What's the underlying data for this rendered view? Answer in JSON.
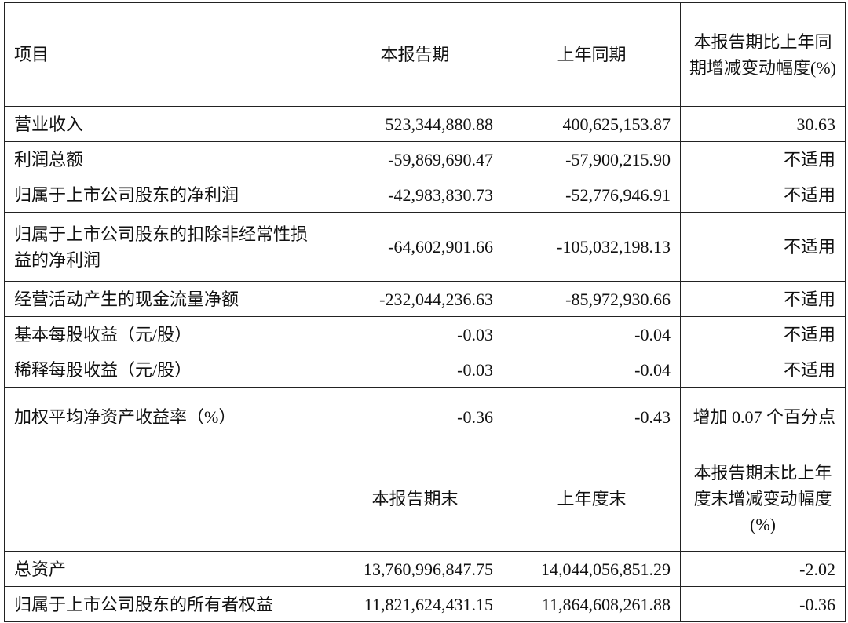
{
  "header": {
    "item": "项目",
    "current": "本报告期",
    "prior": "上年同期",
    "change": "本报告期比上年同期增减变动幅度(%)"
  },
  "rows": [
    {
      "label": "营业收入",
      "current": "523,344,880.88",
      "prior": "400,625,153.87",
      "change": "30.63"
    },
    {
      "label": "利润总额",
      "current": "-59,869,690.47",
      "prior": "-57,900,215.90",
      "change": "不适用"
    },
    {
      "label": "归属于上市公司股东的净利润",
      "current": "-42,983,830.73",
      "prior": "-52,776,946.91",
      "change": "不适用"
    },
    {
      "label": "归属于上市公司股东的扣除非经常性损益的净利润",
      "current": "-64,602,901.66",
      "prior": "-105,032,198.13",
      "change": "不适用"
    },
    {
      "label": "经营活动产生的现金流量净额",
      "current": "-232,044,236.63",
      "prior": "-85,972,930.66",
      "change": "不适用"
    },
    {
      "label": "基本每股收益（元/股）",
      "current": "-0.03",
      "prior": "-0.04",
      "change": "不适用"
    },
    {
      "label": "稀释每股收益（元/股）",
      "current": "-0.03",
      "prior": "-0.04",
      "change": "不适用"
    },
    {
      "label": "加权平均净资产收益率（%）",
      "current": "-0.36",
      "prior": "-0.43",
      "change": "增加 0.07 个百分点"
    }
  ],
  "header2": {
    "item": "",
    "current": "本报告期末",
    "prior": "上年度末",
    "change": "本报告期末比上年度末增减变动幅度(%)"
  },
  "rows2": [
    {
      "label": "总资产",
      "current": "13,760,996,847.75",
      "prior": "14,044,056,851.29",
      "change": "-2.02"
    },
    {
      "label": "归属于上市公司股东的所有者权益",
      "current": "11,821,624,431.15",
      "prior": "11,864,608,261.88",
      "change": "-0.36"
    }
  ]
}
